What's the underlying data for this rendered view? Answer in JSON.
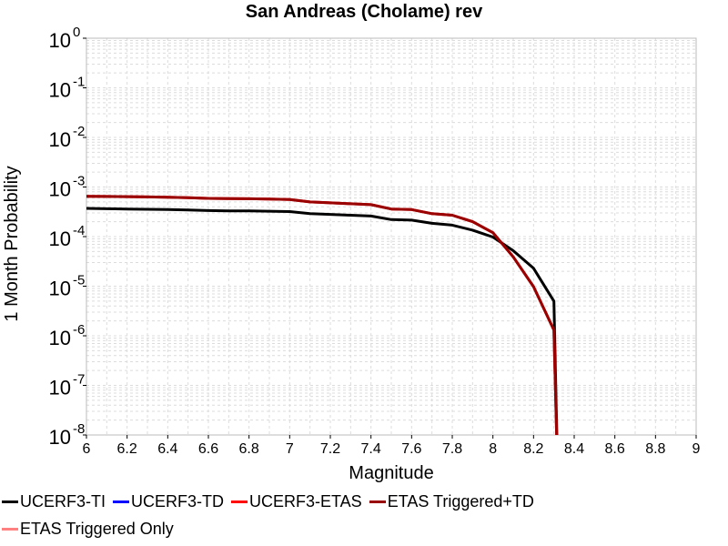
{
  "chart_data": {
    "type": "line",
    "title": "San Andreas (Cholame) rev",
    "xlabel": "Magnitude",
    "ylabel": "1 Month Probability",
    "xlim": [
      6,
      9
    ],
    "ylim": [
      1e-08,
      1
    ],
    "yscale": "log",
    "grid": true,
    "legend_position": "bottom",
    "x_ticks": [
      "6",
      "6.2",
      "6.4",
      "6.6",
      "6.8",
      "7",
      "7.2",
      "7.4",
      "7.6",
      "7.8",
      "8",
      "8.2",
      "8.4",
      "8.6",
      "8.8",
      "9"
    ],
    "y_tick_exponents": [
      "0",
      "-1",
      "-2",
      "-3",
      "-4",
      "-5",
      "-6",
      "-7",
      "-8"
    ],
    "series": [
      {
        "name": "UCERF3-TI",
        "color": "#000000",
        "points": [
          [
            6.0,
            0.00037
          ],
          [
            6.1,
            0.000365
          ],
          [
            6.2,
            0.00036
          ],
          [
            6.3,
            0.000355
          ],
          [
            6.4,
            0.00035
          ],
          [
            6.5,
            0.000345
          ],
          [
            6.6,
            0.000335
          ],
          [
            6.7,
            0.00033
          ],
          [
            6.8,
            0.00033
          ],
          [
            6.9,
            0.000325
          ],
          [
            7.0,
            0.00032
          ],
          [
            7.1,
            0.00029
          ],
          [
            7.2,
            0.00028
          ],
          [
            7.3,
            0.00027
          ],
          [
            7.4,
            0.00026
          ],
          [
            7.5,
            0.00022
          ],
          [
            7.6,
            0.000215
          ],
          [
            7.7,
            0.000185
          ],
          [
            7.8,
            0.00017
          ],
          [
            7.9,
            0.000135
          ],
          [
            8.0,
            9.8e-05
          ],
          [
            8.1,
            5.2e-05
          ],
          [
            8.2,
            2.3e-05
          ],
          [
            8.3,
            5e-06
          ],
          [
            8.32,
            1e-09
          ]
        ]
      },
      {
        "name": "UCERF3-TD",
        "color": "#0000ff",
        "points": []
      },
      {
        "name": "UCERF3-ETAS",
        "color": "#ff0000",
        "points": [
          [
            6.0,
            0.00065
          ],
          [
            6.1,
            0.000645
          ],
          [
            6.2,
            0.00064
          ],
          [
            6.3,
            0.00063
          ],
          [
            6.4,
            0.00062
          ],
          [
            6.5,
            0.00061
          ],
          [
            6.6,
            0.00059
          ],
          [
            6.7,
            0.000585
          ],
          [
            6.8,
            0.00058
          ],
          [
            6.9,
            0.00057
          ],
          [
            7.0,
            0.00056
          ],
          [
            7.1,
            0.0005
          ],
          [
            7.2,
            0.00048
          ],
          [
            7.3,
            0.00046
          ],
          [
            7.4,
            0.00044
          ],
          [
            7.5,
            0.00036
          ],
          [
            7.6,
            0.00035
          ],
          [
            7.7,
            0.00029
          ],
          [
            7.8,
            0.00027
          ],
          [
            7.9,
            0.0002
          ],
          [
            8.0,
            0.00012
          ],
          [
            8.1,
            3.9e-05
          ],
          [
            8.2,
            9.8e-06
          ],
          [
            8.3,
            1.3e-06
          ],
          [
            8.32,
            1e-09
          ]
        ]
      },
      {
        "name": "ETAS Triggered+TD",
        "color": "#990000",
        "points": [
          [
            6.0,
            0.00065
          ],
          [
            6.1,
            0.000645
          ],
          [
            6.2,
            0.00064
          ],
          [
            6.3,
            0.00063
          ],
          [
            6.4,
            0.00062
          ],
          [
            6.5,
            0.00061
          ],
          [
            6.6,
            0.00059
          ],
          [
            6.7,
            0.000585
          ],
          [
            6.8,
            0.00058
          ],
          [
            6.9,
            0.00057
          ],
          [
            7.0,
            0.00056
          ],
          [
            7.1,
            0.0005
          ],
          [
            7.2,
            0.00048
          ],
          [
            7.3,
            0.00046
          ],
          [
            7.4,
            0.00044
          ],
          [
            7.5,
            0.00036
          ],
          [
            7.6,
            0.00035
          ],
          [
            7.7,
            0.00029
          ],
          [
            7.8,
            0.00027
          ],
          [
            7.9,
            0.0002
          ],
          [
            8.0,
            0.00012
          ],
          [
            8.1,
            3.9e-05
          ],
          [
            8.2,
            9.8e-06
          ],
          [
            8.3,
            1.3e-06
          ],
          [
            8.32,
            1e-09
          ]
        ]
      },
      {
        "name": "ETAS Triggered Only",
        "color": "#ff8080",
        "points": []
      }
    ]
  }
}
